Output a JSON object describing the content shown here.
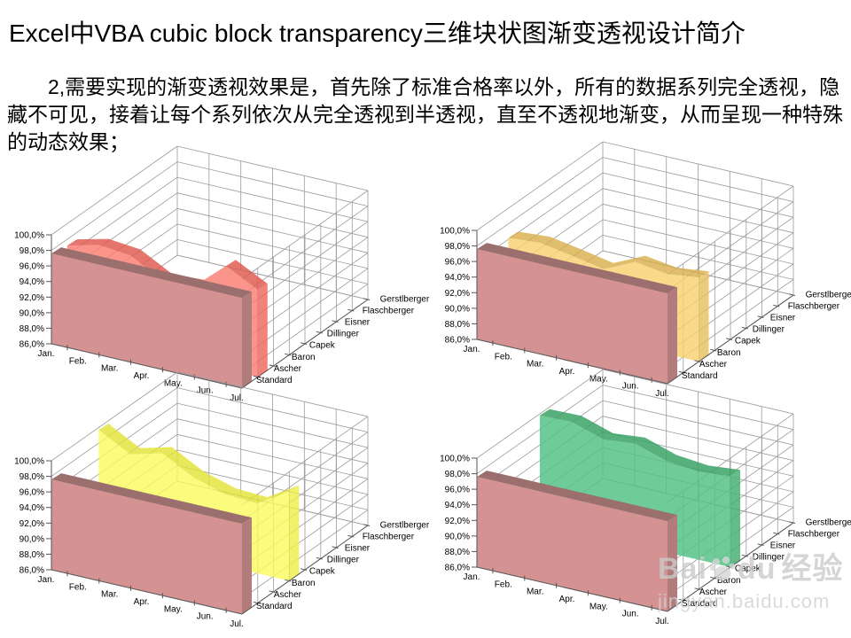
{
  "slide": {
    "title": "Excel中VBA cubic block transparency三维块状图渐变透视设计简介",
    "body": "2,需要实现的渐变透视效果是，首先除了标准合格率以外，所有的数据系列完全透视，隐藏不可见，接着让每个系列依次从完全透视到半透视，直至不透视地渐变，从而呈现一种特殊的动态效果；"
  },
  "watermark": {
    "prefix": "Bai",
    "suffix": "du",
    "cn": "经验",
    "url": "jingyan.baidu.com"
  },
  "chart_data": [
    {
      "position": "top-left",
      "type": "area",
      "projection": "3d",
      "categories": [
        "Jan.",
        "Feb.",
        "Mar.",
        "Apr.",
        "May.",
        "Jun.",
        "Jul."
      ],
      "value_tick_labels": [
        "100,0%",
        "98,0%",
        "96,0%",
        "94,0%",
        "92,0%",
        "90,0%",
        "88,0%",
        "86,0%"
      ],
      "value_ticks": [
        100,
        98,
        96,
        94,
        92,
        90,
        88,
        86
      ],
      "ylim": [
        86,
        100
      ],
      "depth_series": [
        "Standard",
        "Ascher",
        "Baron",
        "Capek",
        "Dillinger",
        "Eisner",
        "Flaschberger",
        "Gerstlberger"
      ],
      "highlight_series": "Ascher",
      "series": [
        {
          "name": "Ascher",
          "row": 1,
          "values": [
            97.2,
            98.2,
            97.8,
            95.6,
            95.8,
            99.3,
            97.2
          ],
          "color": "#FB7D72",
          "top_color": "#E0594E",
          "end_color": "#ED685D",
          "opacity": 0.82
        },
        {
          "name": "Standard",
          "row": 0,
          "values": [
            97.6,
            97.6,
            97.6,
            97.6,
            97.6,
            97.6,
            97.6
          ],
          "color": "#D49292",
          "top_color": "#9C6F6F",
          "end_color": "#B27C7C",
          "opacity": 1
        }
      ]
    },
    {
      "position": "top-right",
      "type": "area",
      "projection": "3d",
      "categories": [
        "Jan.",
        "Feb.",
        "Mar.",
        "Apr.",
        "May.",
        "Jun.",
        "Jul."
      ],
      "value_tick_labels": [
        "100,0%",
        "98,0%",
        "96,0%",
        "94,0%",
        "92,0%",
        "90,0%",
        "88,0%",
        "86,0%"
      ],
      "value_ticks": [
        100,
        98,
        96,
        94,
        92,
        90,
        88,
        86
      ],
      "ylim": [
        86,
        100
      ],
      "depth_series": [
        "Standard",
        "Ascher",
        "Baron",
        "Capek",
        "Dillinger",
        "Eisner",
        "Flaschberger",
        "Gerstlberger"
      ],
      "highlight_series": "Baron",
      "series": [
        {
          "name": "Baron",
          "row": 2,
          "values": [
            96.2,
            96.5,
            95.8,
            95.0,
            96.9,
            96.3,
            96.8
          ],
          "color": "#F7D26E",
          "top_color": "#D9AF4B",
          "end_color": "#E7C059",
          "opacity": 0.8
        },
        {
          "name": "Standard",
          "row": 0,
          "values": [
            97.6,
            97.6,
            97.6,
            97.6,
            97.6,
            97.6,
            97.6
          ],
          "color": "#D49292",
          "top_color": "#9C6F6F",
          "end_color": "#B27C7C",
          "opacity": 1
        }
      ]
    },
    {
      "position": "bottom-left",
      "type": "area",
      "projection": "3d",
      "categories": [
        "Jan.",
        "Feb.",
        "Mar.",
        "Apr.",
        "May.",
        "Jun.",
        "Jul."
      ],
      "value_tick_labels": [
        "100,0%",
        "98,0%",
        "96,0%",
        "94,0%",
        "92,0%",
        "90,0%",
        "88,0%",
        "86,0%"
      ],
      "value_ticks": [
        100,
        98,
        96,
        94,
        92,
        90,
        88,
        86
      ],
      "ylim": [
        86,
        100
      ],
      "depth_series": [
        "Standard",
        "Ascher",
        "Baron",
        "Capek",
        "Dillinger",
        "Eisner",
        "Flaschberger",
        "Gerstlberger"
      ],
      "highlight_series": "Capek",
      "series": [
        {
          "name": "Capek",
          "row": 3,
          "values": [
            99.7,
            97.5,
            98.6,
            96.4,
            95.2,
            95.0,
            97.5
          ],
          "color": "#FBFB5D",
          "top_color": "#E3E334",
          "end_color": "#EFEF46",
          "opacity": 0.8
        },
        {
          "name": "Standard",
          "row": 0,
          "values": [
            97.6,
            97.6,
            97.6,
            97.6,
            97.6,
            97.6,
            97.6
          ],
          "color": "#D49292",
          "top_color": "#9C6F6F",
          "end_color": "#B27C7C",
          "opacity": 1
        }
      ]
    },
    {
      "position": "bottom-right",
      "type": "area",
      "projection": "3d",
      "categories": [
        "Jan.",
        "Feb.",
        "Mar.",
        "Apr.",
        "May.",
        "Jun.",
        "Jul."
      ],
      "value_tick_labels": [
        "100,0%",
        "98,0%",
        "96,0%",
        "94,0%",
        "92,0%",
        "90,0%",
        "88,0%",
        "86,0%"
      ],
      "value_ticks": [
        100,
        98,
        96,
        94,
        92,
        90,
        88,
        86
      ],
      "ylim": [
        86,
        100
      ],
      "depth_series": [
        "Standard",
        "Ascher",
        "Baron",
        "Capek",
        "Dillinger",
        "Eisner",
        "Flaschberger",
        "Gerstlberger"
      ],
      "highlight_series": "Dillinger",
      "series": [
        {
          "name": "Dillinger",
          "row": 4,
          "values": [
            99.8,
            99.9,
            98.6,
            99.0,
            97.7,
            97.3,
            97.7
          ],
          "color": "#56C285",
          "top_color": "#3CA467",
          "end_color": "#47B274",
          "opacity": 0.85
        },
        {
          "name": "Standard",
          "row": 0,
          "values": [
            97.6,
            97.6,
            97.6,
            97.6,
            97.6,
            97.6,
            97.6
          ],
          "color": "#D49292",
          "top_color": "#9C6F6F",
          "end_color": "#B27C7C",
          "opacity": 1
        }
      ]
    }
  ],
  "chart_style": {
    "grid_color": "#9b9b9b",
    "axis_color": "#555555",
    "label_color": "#000000"
  }
}
